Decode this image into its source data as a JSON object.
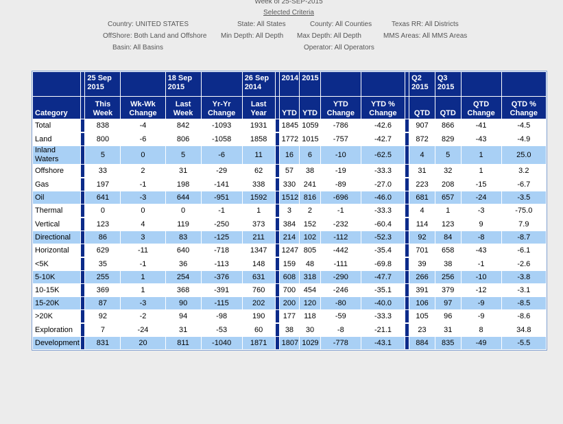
{
  "header": {
    "title": "Week of 25-SEP-2015",
    "link": "Selected Criteria"
  },
  "criteria": [
    {
      "label": "Country:",
      "value": "UNITED STATES"
    },
    {
      "label": "State:",
      "value": "All States"
    },
    {
      "label": "County:",
      "value": "All Counties"
    },
    {
      "label": "Texas RR:",
      "value": "All Districts"
    },
    {
      "label": "OffShore:",
      "value": "Both Land and Offshore"
    },
    {
      "label": "Min Depth:",
      "value": "All Depth"
    },
    {
      "label": "Max Depth:",
      "value": "All Depth"
    },
    {
      "label": "MMS Areas:",
      "value": "All MMS Areas"
    },
    {
      "label": "Basin:",
      "value": "All Basins"
    },
    {
      "label": "Operator:",
      "value": "All Operators"
    }
  ],
  "table": {
    "header": {
      "sections": [
        [
          {
            "label": "Category"
          }
        ],
        [
          {
            "top": "25 Sep 2015",
            "label": "This Week"
          },
          {
            "label": "Wk-Wk Change"
          },
          {
            "top": "18 Sep 2015",
            "label": "Last Week"
          },
          {
            "label": "Yr-Yr Change"
          },
          {
            "top": "26 Sep 2014",
            "label": "Last Year"
          }
        ],
        [
          {
            "top": "2014",
            "label": "YTD"
          },
          {
            "top": "2015",
            "label": "YTD"
          },
          {
            "label": "YTD Change"
          },
          {
            "label": "YTD % Change"
          }
        ],
        [
          {
            "top": "Q2 2015",
            "label": "QTD"
          },
          {
            "top": "Q3 2015",
            "label": "QTD"
          },
          {
            "label": "QTD Change"
          },
          {
            "label": "QTD % Change"
          }
        ]
      ]
    },
    "groups": [
      {
        "rows": [
          [
            "Total",
            "838",
            "-4",
            "842",
            "-1093",
            "1931",
            "1845",
            "1059",
            "-786",
            "-42.6",
            "907",
            "866",
            "-41",
            "-4.5"
          ]
        ]
      },
      {
        "rows": [
          [
            "Land",
            "800",
            "-6",
            "806",
            "-1058",
            "1858",
            "1772",
            "1015",
            "-757",
            "-42.7",
            "872",
            "829",
            "-43",
            "-4.9"
          ],
          [
            "Inland Waters",
            "5",
            "0",
            "5",
            "-6",
            "11",
            "16",
            "6",
            "-10",
            "-62.5",
            "4",
            "5",
            "1",
            "25.0"
          ],
          [
            "Offshore",
            "33",
            "2",
            "31",
            "-29",
            "62",
            "57",
            "38",
            "-19",
            "-33.3",
            "31",
            "32",
            "1",
            "3.2"
          ]
        ]
      },
      {
        "rows": [
          [
            "Gas",
            "197",
            "-1",
            "198",
            "-141",
            "338",
            "330",
            "241",
            "-89",
            "-27.0",
            "223",
            "208",
            "-15",
            "-6.7"
          ],
          [
            "Oil",
            "641",
            "-3",
            "644",
            "-951",
            "1592",
            "1512",
            "816",
            "-696",
            "-46.0",
            "681",
            "657",
            "-24",
            "-3.5"
          ],
          [
            "Thermal",
            "0",
            "0",
            "0",
            "-1",
            "1",
            "3",
            "2",
            "-1",
            "-33.3",
            "4",
            "1",
            "-3",
            "-75.0"
          ]
        ]
      },
      {
        "rows": [
          [
            "Vertical",
            "123",
            "4",
            "119",
            "-250",
            "373",
            "384",
            "152",
            "-232",
            "-60.4",
            "114",
            "123",
            "9",
            "7.9"
          ],
          [
            "Directional",
            "86",
            "3",
            "83",
            "-125",
            "211",
            "214",
            "102",
            "-112",
            "-52.3",
            "92",
            "84",
            "-8",
            "-8.7"
          ],
          [
            "Horizontal",
            "629",
            "-11",
            "640",
            "-718",
            "1347",
            "1247",
            "805",
            "-442",
            "-35.4",
            "701",
            "658",
            "-43",
            "-6.1"
          ]
        ]
      },
      {
        "rows": [
          [
            "<5K",
            "35",
            "-1",
            "36",
            "-113",
            "148",
            "159",
            "48",
            "-111",
            "-69.8",
            "39",
            "38",
            "-1",
            "-2.6"
          ],
          [
            "5-10K",
            "255",
            "1",
            "254",
            "-376",
            "631",
            "608",
            "318",
            "-290",
            "-47.7",
            "266",
            "256",
            "-10",
            "-3.8"
          ],
          [
            "10-15K",
            "369",
            "1",
            "368",
            "-391",
            "760",
            "700",
            "454",
            "-246",
            "-35.1",
            "391",
            "379",
            "-12",
            "-3.1"
          ],
          [
            "15-20K",
            "87",
            "-3",
            "90",
            "-115",
            "202",
            "200",
            "120",
            "-80",
            "-40.0",
            "106",
            "97",
            "-9",
            "-8.5"
          ],
          [
            ">20K",
            "92",
            "-2",
            "94",
            "-98",
            "190",
            "177",
            "118",
            "-59",
            "-33.3",
            "105",
            "96",
            "-9",
            "-8.6"
          ]
        ]
      },
      {
        "rows": [
          [
            "Exploration",
            "7",
            "-24",
            "31",
            "-53",
            "60",
            "38",
            "30",
            "-8",
            "-21.1",
            "23",
            "31",
            "8",
            "34.8"
          ],
          [
            "Development",
            "831",
            "20",
            "811",
            "-1040",
            "1871",
            "1807",
            "1029",
            "-778",
            "-43.1",
            "884",
            "835",
            "-49",
            "-5.5"
          ]
        ]
      }
    ]
  }
}
